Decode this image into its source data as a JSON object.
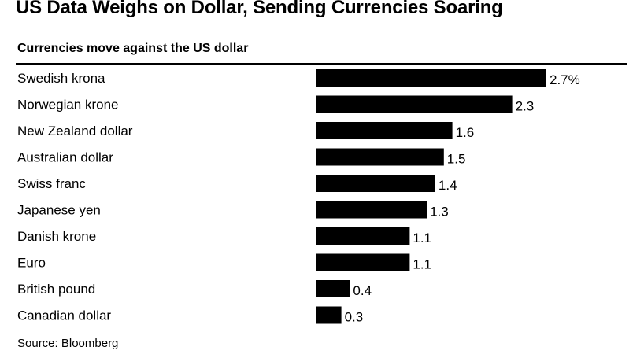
{
  "chart_data": {
    "type": "bar",
    "orientation": "horizontal",
    "title": "US Data Weighs on Dollar, Sending Currencies Soaring",
    "subtitle": "Currencies move against the US dollar",
    "categories": [
      "Swedish krona",
      "Norwegian krone",
      "New Zealand dollar",
      "Australian dollar",
      "Swiss franc",
      "Japanese yen",
      "Danish krone",
      "Euro",
      "British pound",
      "Canadian dollar"
    ],
    "values": [
      2.7,
      2.3,
      1.6,
      1.5,
      1.4,
      1.3,
      1.1,
      1.1,
      0.4,
      0.3
    ],
    "value_labels": [
      "2.7%",
      "2.3",
      "1.6",
      "1.5",
      "1.4",
      "1.3",
      "1.1",
      "1.1",
      "0.4",
      "0.3"
    ],
    "unit": "%",
    "xlim": [
      0,
      2.7
    ],
    "bar_color": "#000000",
    "grid": false,
    "legend": "none",
    "source": "Source: Bloomberg"
  }
}
